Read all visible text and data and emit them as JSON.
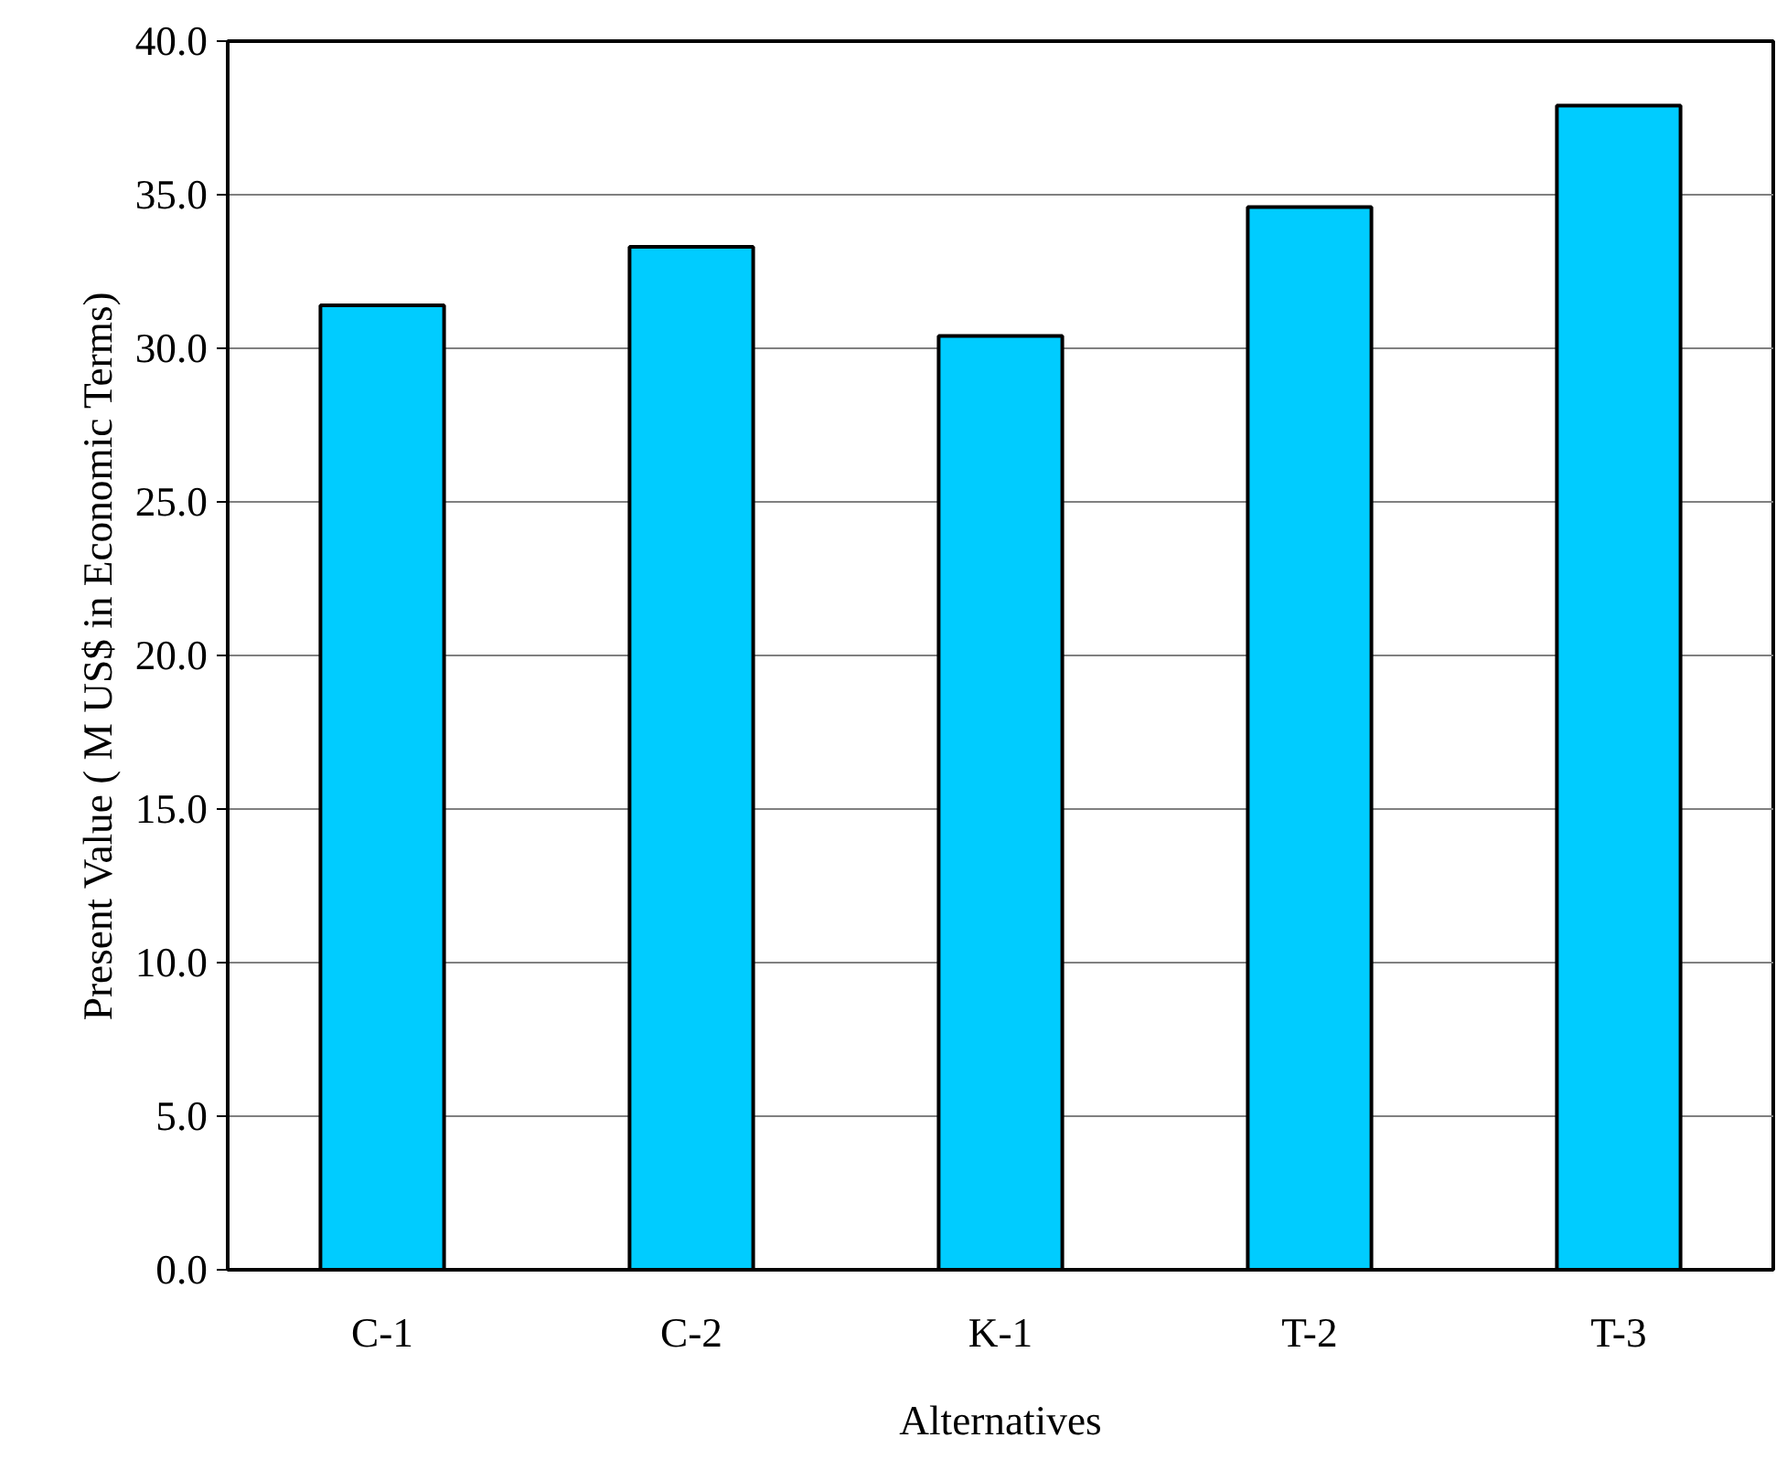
{
  "chart_data": {
    "type": "bar",
    "xlabel": "Alternatives",
    "ylabel": "Present Value ( M US$ in Economic Terms)",
    "categories": [
      "C-1",
      "C-2",
      "K-1",
      "T-2",
      "T-3"
    ],
    "values": [
      31.4,
      33.3,
      30.4,
      34.6,
      37.9
    ],
    "color": "#00ccff",
    "ylim": [
      0,
      40
    ],
    "yticks": [
      {
        "value": 0,
        "label": "0.0"
      },
      {
        "value": 5,
        "label": "5.0"
      },
      {
        "value": 10,
        "label": "10.0"
      },
      {
        "value": 15,
        "label": "15.0"
      },
      {
        "value": 20,
        "label": "20.0"
      },
      {
        "value": 25,
        "label": "25.0"
      },
      {
        "value": 30,
        "label": "30.0"
      },
      {
        "value": 35,
        "label": "35.0"
      },
      {
        "value": 40,
        "label": "40.0"
      }
    ],
    "grid": "y"
  }
}
